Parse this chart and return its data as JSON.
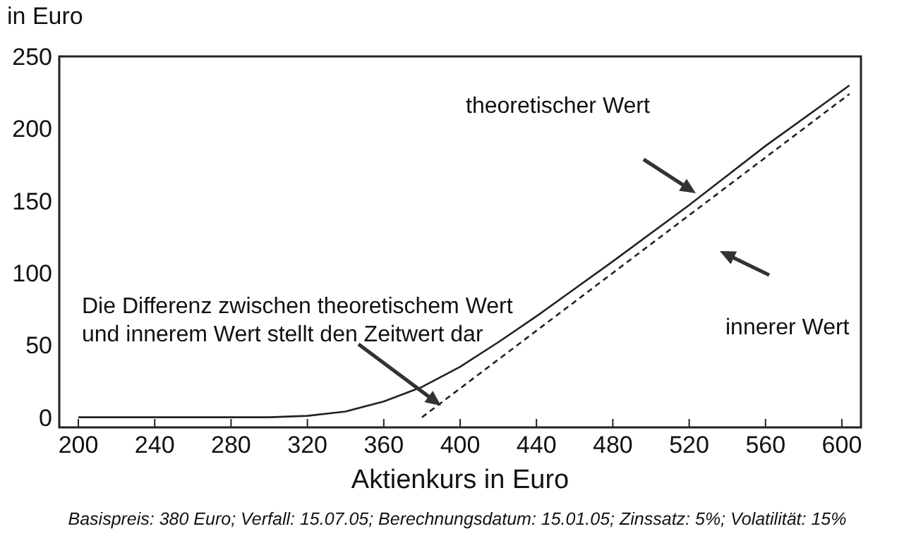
{
  "chart_data": {
    "type": "line",
    "ylabel": "in Euro",
    "xlabel": "Aktienkurs in Euro",
    "xlim": [
      190,
      610
    ],
    "ylim": [
      -7,
      250
    ],
    "xticks": [
      200,
      240,
      280,
      320,
      360,
      400,
      440,
      480,
      520,
      560,
      600
    ],
    "yticks": [
      0,
      50,
      100,
      150,
      200,
      250
    ],
    "grid": false,
    "series": [
      {
        "color": "#222222",
        "line_style": "solid",
        "x": [
          200,
          300,
          320,
          340,
          360,
          380,
          400,
          420,
          440,
          460,
          480,
          520,
          560,
          604
        ],
        "values": [
          0,
          0,
          1,
          4,
          11,
          21,
          35,
          52,
          70,
          89,
          108,
          147,
          188,
          230
        ]
      },
      {
        "color": "#222222",
        "line_style": "dashed",
        "x": [
          380,
          604
        ],
        "values": [
          0,
          224
        ]
      }
    ],
    "annotations": [
      "theoretischer Wert",
      "innerer Wert",
      {
        "text": "Die Differenz zwischen theoretischem Wert\nund innerem Wert stellt den Zeitwert dar",
        "x": 390,
        "y": 8
      },
      "Basispreis: 380 Euro; Verfall: 15.07.05; Berechnungsdatum: 15.01.05; Zinssatz: 5%; Volatilität: 15%"
    ]
  }
}
